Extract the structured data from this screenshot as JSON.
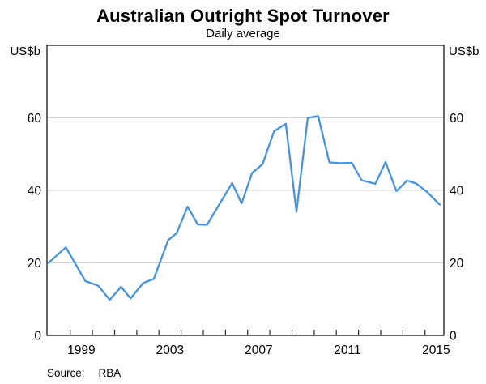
{
  "header": {
    "title": "Australian Outright Spot Turnover",
    "subtitle": "Daily average"
  },
  "axes": {
    "left_unit": "US$b",
    "right_unit": "US$b"
  },
  "footer": {
    "source_label": "Source:",
    "source_value": "RBA"
  },
  "chart_data": {
    "type": "line",
    "title": "Australian Outright Spot Turnover",
    "subtitle": "Daily average",
    "ylabel": "US$b",
    "ylim": [
      0,
      80
    ],
    "xlim": [
      1997.95,
      2015.85
    ],
    "grid_on": true,
    "grid_values": [
      20,
      40,
      60
    ],
    "y_axis_labels": [
      0,
      20,
      40,
      60
    ],
    "x_axis_label_years": [
      1999,
      2003,
      2007,
      2011,
      2015
    ],
    "x_tick_years": [
      1999,
      2000,
      2001,
      2002,
      2003,
      2004,
      2005,
      2006,
      2007,
      2008,
      2009,
      2010,
      2011,
      2012,
      2013,
      2014,
      2015
    ],
    "legend": "none",
    "colors": {
      "line": "#4793d9",
      "grid": "#d2d2d2",
      "axis": "#262626",
      "text": "#000000"
    },
    "series": [
      {
        "name": "Australian outright spot turnover, daily average (US$b)",
        "points": [
          [
            1998.02,
            20.0
          ],
          [
            1998.8,
            24.3
          ],
          [
            1999.68,
            15.0
          ],
          [
            2000.26,
            13.7
          ],
          [
            2000.78,
            9.8
          ],
          [
            2001.29,
            13.4
          ],
          [
            2001.72,
            10.2
          ],
          [
            2002.28,
            14.4
          ],
          [
            2002.77,
            15.6
          ],
          [
            2003.42,
            26.3
          ],
          [
            2003.8,
            28.2
          ],
          [
            2004.29,
            35.5
          ],
          [
            2004.75,
            30.6
          ],
          [
            2005.17,
            30.5
          ],
          [
            2006.3,
            42.0
          ],
          [
            2006.73,
            36.4
          ],
          [
            2007.2,
            44.8
          ],
          [
            2007.67,
            47.2
          ],
          [
            2008.19,
            56.3
          ],
          [
            2008.72,
            58.4
          ],
          [
            2009.2,
            34.1
          ],
          [
            2009.71,
            60.0
          ],
          [
            2010.18,
            60.5
          ],
          [
            2010.69,
            47.7
          ],
          [
            2011.18,
            47.5
          ],
          [
            2011.7,
            47.6
          ],
          [
            2012.14,
            42.8
          ],
          [
            2012.76,
            41.8
          ],
          [
            2013.22,
            47.8
          ],
          [
            2013.71,
            39.8
          ],
          [
            2014.19,
            42.7
          ],
          [
            2014.6,
            41.9
          ],
          [
            2015.1,
            39.5
          ],
          [
            2015.66,
            36.1
          ]
        ]
      }
    ]
  }
}
